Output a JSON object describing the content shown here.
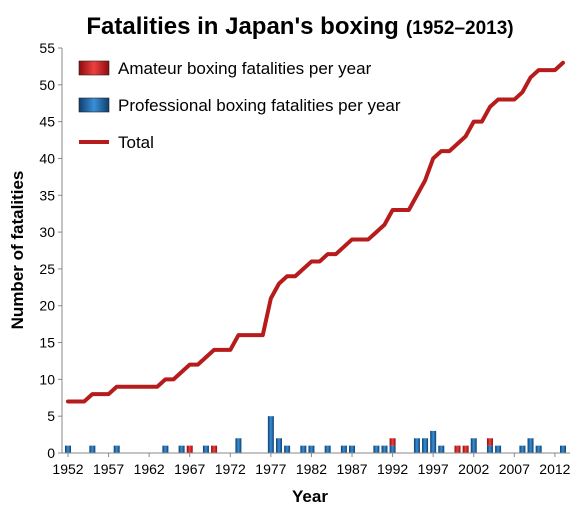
{
  "chart_data": {
    "type": "bar",
    "title": "Fatalities in Japan's boxing",
    "subtitle": "(1952–2013)",
    "xlabel": "Year",
    "ylabel": "Number of fatalities",
    "xlim": [
      1952,
      2013
    ],
    "ylim": [
      0,
      55
    ],
    "x_tick_labels": [
      "1952",
      "1957",
      "1962",
      "1967",
      "1972",
      "1977",
      "1982",
      "1987",
      "1992",
      "1997",
      "2002",
      "2007",
      "2012"
    ],
    "y_tick_labels": [
      "0",
      "5",
      "10",
      "15",
      "20",
      "25",
      "30",
      "35",
      "40",
      "45",
      "50",
      "55"
    ],
    "grid": false,
    "legend_position": "top-left",
    "series": [
      {
        "name": "Amateur boxing fatalities per year",
        "kind": "bar",
        "color": "#d42020",
        "points": [
          {
            "x": 1967,
            "y": 1
          },
          {
            "x": 1970,
            "y": 1
          },
          {
            "x": 1992,
            "y": 1
          },
          {
            "x": 2000,
            "y": 1
          },
          {
            "x": 2001,
            "y": 1
          },
          {
            "x": 2004,
            "y": 1
          }
        ]
      },
      {
        "name": "Professional boxing fatalities per year",
        "kind": "bar",
        "color": "#1a5f9e",
        "points": [
          {
            "x": 1952,
            "y": 1
          },
          {
            "x": 1955,
            "y": 1
          },
          {
            "x": 1958,
            "y": 1
          },
          {
            "x": 1964,
            "y": 1
          },
          {
            "x": 1966,
            "y": 1
          },
          {
            "x": 1969,
            "y": 1
          },
          {
            "x": 1973,
            "y": 2
          },
          {
            "x": 1977,
            "y": 5
          },
          {
            "x": 1978,
            "y": 2
          },
          {
            "x": 1979,
            "y": 1
          },
          {
            "x": 1981,
            "y": 1
          },
          {
            "x": 1982,
            "y": 1
          },
          {
            "x": 1984,
            "y": 1
          },
          {
            "x": 1986,
            "y": 1
          },
          {
            "x": 1987,
            "y": 1
          },
          {
            "x": 1990,
            "y": 1
          },
          {
            "x": 1991,
            "y": 1
          },
          {
            "x": 1992,
            "y": 1
          },
          {
            "x": 1995,
            "y": 2
          },
          {
            "x": 1996,
            "y": 2
          },
          {
            "x": 1997,
            "y": 3
          },
          {
            "x": 1998,
            "y": 1
          },
          {
            "x": 2002,
            "y": 2
          },
          {
            "x": 2004,
            "y": 1
          },
          {
            "x": 2005,
            "y": 1
          },
          {
            "x": 2008,
            "y": 1
          },
          {
            "x": 2009,
            "y": 2
          },
          {
            "x": 2010,
            "y": 1
          },
          {
            "x": 2013,
            "y": 1
          }
        ]
      },
      {
        "name": "Total",
        "kind": "line",
        "color": "#b71c1c",
        "x": [
          1952,
          1953,
          1954,
          1955,
          1956,
          1957,
          1958,
          1959,
          1960,
          1961,
          1962,
          1963,
          1964,
          1965,
          1966,
          1967,
          1968,
          1969,
          1970,
          1971,
          1972,
          1973,
          1974,
          1975,
          1976,
          1977,
          1978,
          1979,
          1980,
          1981,
          1982,
          1983,
          1984,
          1985,
          1986,
          1987,
          1988,
          1989,
          1990,
          1991,
          1992,
          1993,
          1994,
          1995,
          1996,
          1997,
          1998,
          1999,
          2000,
          2001,
          2002,
          2003,
          2004,
          2005,
          2006,
          2007,
          2008,
          2009,
          2010,
          2011,
          2012,
          2013
        ],
        "y": [
          7,
          7,
          7,
          8,
          8,
          8,
          9,
          9,
          9,
          9,
          9,
          9,
          10,
          10,
          11,
          12,
          12,
          13,
          14,
          14,
          14,
          16,
          16,
          16,
          16,
          21,
          23,
          24,
          24,
          25,
          26,
          26,
          27,
          27,
          28,
          29,
          29,
          29,
          30,
          31,
          33,
          33,
          33,
          35,
          37,
          40,
          41,
          41,
          42,
          43,
          45,
          45,
          47,
          48,
          48,
          48,
          49,
          51,
          52,
          52,
          52,
          53
        ]
      }
    ]
  }
}
